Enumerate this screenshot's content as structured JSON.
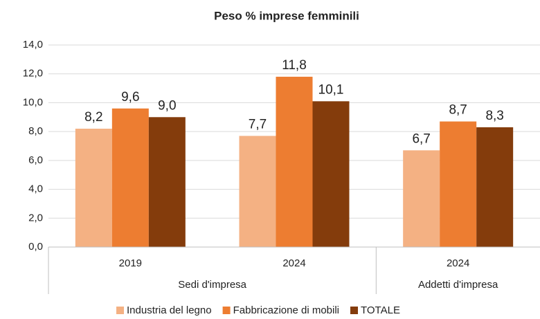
{
  "chart_data": {
    "type": "bar",
    "title": "Peso % imprese femminili",
    "categories": [
      "2019",
      "2024",
      "2024"
    ],
    "category_groups": [
      "Sedi d'impresa",
      "Sedi d'impresa",
      "Addetti d'impresa"
    ],
    "series": [
      {
        "name": "Industria del legno",
        "color": "#f4b183",
        "values": [
          8.2,
          7.7,
          6.7
        ],
        "value_labels": [
          "8,2",
          "7,7",
          "6,7"
        ]
      },
      {
        "name": "Fabbricazione di mobili",
        "color": "#ed7d31",
        "values": [
          9.6,
          11.8,
          8.7
        ],
        "value_labels": [
          "9,6",
          "11,8",
          "8,7"
        ]
      },
      {
        "name": "TOTALE",
        "color": "#843c0c",
        "values": [
          9.0,
          10.1,
          8.3
        ],
        "value_labels": [
          "9,0",
          "10,1",
          "8,3"
        ]
      }
    ],
    "ylim": [
      0,
      14
    ],
    "yticks": [
      {
        "value": 0,
        "label": "0,0"
      },
      {
        "value": 2,
        "label": "2,0"
      },
      {
        "value": 4,
        "label": "4,0"
      },
      {
        "value": 6,
        "label": "6,0"
      },
      {
        "value": 8,
        "label": "8,0"
      },
      {
        "value": 10,
        "label": "10,0"
      },
      {
        "value": 12,
        "label": "12,0"
      },
      {
        "value": 14,
        "label": "14,0"
      }
    ],
    "grid": true,
    "legend": "bottom"
  }
}
